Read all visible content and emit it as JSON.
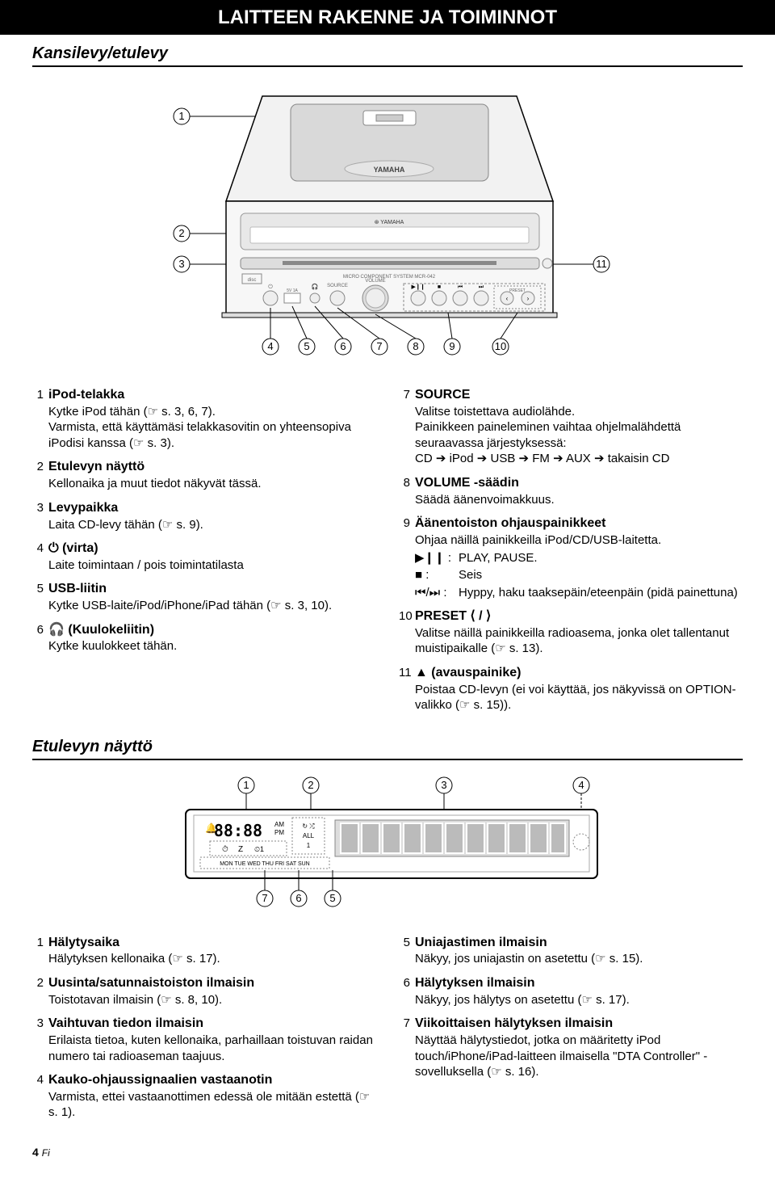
{
  "title": "LAITTEEN RAKENNE JA TOIMINNOT",
  "section1_heading": "Kansilevy/etulevy",
  "section2_heading": "Etulevyn näyttö",
  "device": {
    "labels": {
      "1": "1",
      "2": "2",
      "3": "3",
      "4": "4",
      "5": "5",
      "6": "6",
      "7": "7",
      "8": "8",
      "9": "9",
      "10": "10",
      "11": "11"
    },
    "brand": "YAMAHA",
    "tagline": "MICRO COMPONENT SYSTEM MCR-042",
    "volume": "VOLUME",
    "source": "SOURCE",
    "preset": "PRESET"
  },
  "left_items": [
    {
      "n": "1",
      "title": "iPod-telakka",
      "body": "Kytke iPod tähän (☞ s. 3, 6, 7).\nVarmista, että käyttämäsi telakkasovitin on yhteensopiva iPodisi kanssa (☞ s. 3)."
    },
    {
      "n": "2",
      "title": "Etulevyn näyttö",
      "body": "Kellonaika ja muut tiedot näkyvät tässä."
    },
    {
      "n": "3",
      "title": "Levypaikka",
      "body": "Laita CD-levy tähän (☞ s. 9)."
    },
    {
      "n": "4",
      "title": "⏻ (virta)",
      "body": "Laite toimintaan / pois toimintatilasta"
    },
    {
      "n": "5",
      "title": "USB-liitin",
      "body": "Kytke USB-laite/iPod/iPhone/iPad tähän (☞ s. 3, 10)."
    },
    {
      "n": "6",
      "title": "🎧 (Kuulokeliitin)",
      "body": "Kytke kuulokkeet tähän."
    }
  ],
  "right_items": [
    {
      "n": "7",
      "title": "SOURCE",
      "body": "Valitse toistettava audiolähde.\nPainikkeen paineleminen vaihtaa ohjelmalähdettä seuraavassa järjestyksessä:\nCD ➔ iPod ➔ USB ➔ FM ➔ AUX ➔ takaisin CD"
    },
    {
      "n": "8",
      "title": "VOLUME -säädin",
      "body": "Säädä äänenvoimakkuus."
    },
    {
      "n": "9",
      "title": "Äänentoiston ohjauspainikkeet",
      "body": "Ohjaa näillä painikkeilla iPod/CD/USB-laitetta.",
      "rows": [
        {
          "sym": "▶❙❙ :",
          "txt": "PLAY, PAUSE."
        },
        {
          "sym": "■ :",
          "txt": "Seis"
        },
        {
          "sym": "⏮/⏭ :",
          "txt": "Hyppy, haku taaksepäin/eteenpäin (pidä painettuna)"
        }
      ]
    },
    {
      "n": "10",
      "title": "PRESET ⟨ / ⟩",
      "body": "Valitse näillä painikkeilla radioasema, jonka olet tallentanut muistipaikalle (☞ s. 13)."
    },
    {
      "n": "11",
      "title": "▲ (avauspainike)",
      "body": "Poistaa CD-levyn (ei voi käyttää, jos näkyvissä on OPTION-valikko (☞ s. 15))."
    }
  ],
  "display": {
    "labels": {
      "1": "1",
      "2": "2",
      "3": "3",
      "4": "4",
      "5": "5",
      "6": "6",
      "7": "7"
    },
    "clock": "88:88",
    "ampm": "AM\nPM",
    "all": "ALL",
    "iz": "⏱ Z",
    "days": "MON TUE WED THU FRI SAT SUN"
  },
  "left_items2": [
    {
      "n": "1",
      "title": "Hälytysaika",
      "body": "Hälytyksen kellonaika (☞ s. 17)."
    },
    {
      "n": "2",
      "title": "Uusinta/satunnaistoiston ilmaisin",
      "body": "Toistotavan ilmaisin (☞ s. 8, 10)."
    },
    {
      "n": "3",
      "title": "Vaihtuvan tiedon ilmaisin",
      "body": "Erilaista tietoa, kuten kellonaika, parhaillaan toistuvan raidan numero tai radioaseman taajuus."
    },
    {
      "n": "4",
      "title": "Kauko-ohjaussignaalien vastaanotin",
      "body": "Varmista, ettei vastaanottimen edessä ole mitään estettä (☞ s. 1)."
    }
  ],
  "right_items2": [
    {
      "n": "5",
      "title": "Uniajastimen ilmaisin",
      "body": "Näkyy, jos uniajastin on asetettu (☞ s. 15)."
    },
    {
      "n": "6",
      "title": "Hälytyksen ilmaisin",
      "body": "Näkyy, jos hälytys on asetettu (☞ s. 17)."
    },
    {
      "n": "7",
      "title": "Viikoittaisen hälytyksen ilmaisin",
      "body": "Näyttää hälytystiedot, jotka on määritetty iPod touch/iPhone/iPad-laitteen ilmaisella \"DTA Controller\" -sovelluksella (☞ s. 16)."
    }
  ],
  "footer": {
    "page": "4",
    "fi": "Fi"
  }
}
